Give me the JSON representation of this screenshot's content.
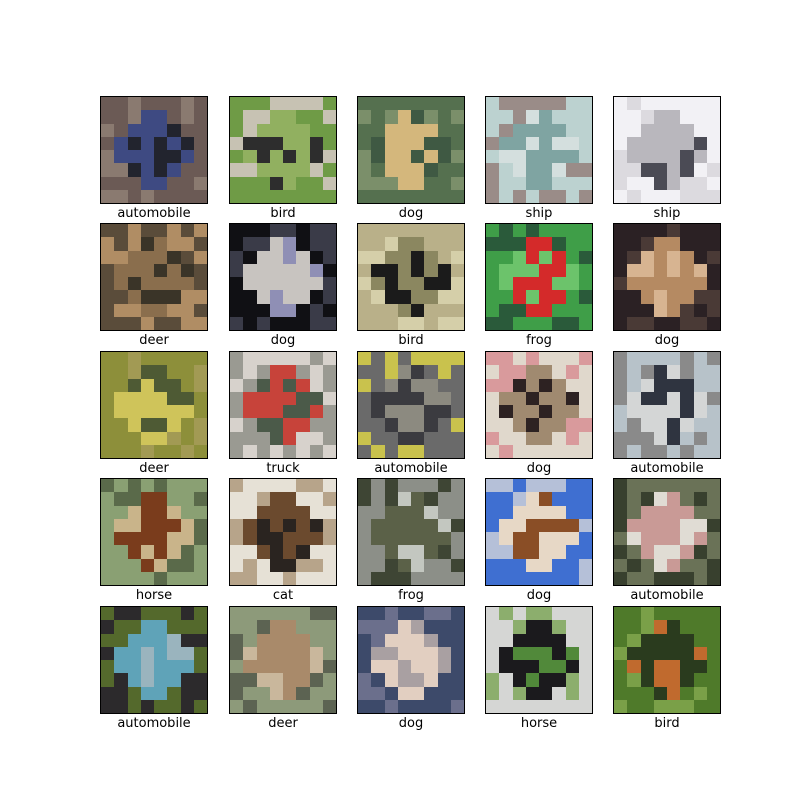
{
  "figure": {
    "images": [
      {
        "label": "automobile",
        "depicts": "blue car",
        "colors": [
          "#6b5a55",
          "#3e4a82",
          "#22242e",
          "#8a7a70"
        ]
      },
      {
        "label": "bird",
        "depicts": "small dark bird on post",
        "colors": [
          "#6f9b46",
          "#91b060",
          "#2d2d2d",
          "#c7c2b3"
        ]
      },
      {
        "label": "dog",
        "depicts": "tan chihuahua",
        "colors": [
          "#55704f",
          "#d4b77c",
          "#3f5943",
          "#7b8f6a"
        ]
      },
      {
        "label": "ship",
        "depicts": "ship hull on water",
        "colors": [
          "#bcd2d0",
          "#7fa4a2",
          "#d4dfde",
          "#9a8c88"
        ]
      },
      {
        "label": "ship",
        "depicts": "white ship",
        "colors": [
          "#f2f1f5",
          "#b9b7bd",
          "#4b4b55",
          "#dcdadf"
        ]
      },
      {
        "label": "deer",
        "depicts": "deer lying down",
        "colors": [
          "#5a4c3a",
          "#8a6e4d",
          "#3a3428",
          "#b08d64"
        ]
      },
      {
        "label": "dog",
        "depicts": "white fluffy dog",
        "colors": [
          "#101014",
          "#c8c4c0",
          "#8f8fb5",
          "#3a3b48"
        ]
      },
      {
        "label": "bird",
        "depicts": "black bird on branch",
        "colors": [
          "#b9b089",
          "#8b8760",
          "#1b1b1b",
          "#d5cfa9"
        ]
      },
      {
        "label": "frog",
        "depicts": "green frog with red eyes",
        "colors": [
          "#3f9e48",
          "#d42a2a",
          "#6cc36b",
          "#2a5a3a"
        ]
      },
      {
        "label": "dog",
        "depicts": "tan dog face",
        "colors": [
          "#2b2124",
          "#b58a62",
          "#d7b491",
          "#4a3a36"
        ]
      },
      {
        "label": "deer",
        "depicts": "deer in yellow grass",
        "colors": [
          "#8d8f3a",
          "#cfc45a",
          "#4e5a34",
          "#a29a54"
        ]
      },
      {
        "label": "truck",
        "depicts": "white fire truck",
        "colors": [
          "#d7d2cc",
          "#c7433a",
          "#4b5a49",
          "#9a9a92"
        ]
      },
      {
        "label": "automobile",
        "depicts": "grey sedan front",
        "colors": [
          "#6a6a6a",
          "#3b3b40",
          "#8c8a80",
          "#c9c24d"
        ]
      },
      {
        "label": "dog",
        "depicts": "pekingese face",
        "colors": [
          "#e0d8cc",
          "#a08a70",
          "#2d2222",
          "#d99a9c"
        ]
      },
      {
        "label": "automobile",
        "depicts": "dark hatchback",
        "colors": [
          "#b7c2c9",
          "#2f3440",
          "#d4d6d6",
          "#8a8a8a"
        ]
      },
      {
        "label": "horse",
        "depicts": "brown horse with rider",
        "colors": [
          "#8aa073",
          "#7a3c1c",
          "#c9b48a",
          "#5a6a4a"
        ]
      },
      {
        "label": "cat",
        "depicts": "brown and white cat",
        "colors": [
          "#e6e1d6",
          "#6b4a2e",
          "#2a2420",
          "#b7a48a"
        ]
      },
      {
        "label": "frog",
        "depicts": "camouflaged frog",
        "colors": [
          "#8c8f88",
          "#5b6148",
          "#c3c7c0",
          "#3e4534"
        ]
      },
      {
        "label": "dog",
        "depicts": "brown and white dog on blue",
        "colors": [
          "#3f6fd1",
          "#e7d8c6",
          "#8a4e26",
          "#b5c0d8"
        ]
      },
      {
        "label": "automobile",
        "depicts": "vintage red car",
        "colors": [
          "#6a7257",
          "#c99a96",
          "#e0dcd4",
          "#38402e"
        ]
      },
      {
        "label": "automobile",
        "depicts": "teal vintage car",
        "colors": [
          "#2c2a2c",
          "#5fa3b8",
          "#9ab4be",
          "#54692c"
        ]
      },
      {
        "label": "deer",
        "depicts": "deer head with antlers",
        "colors": [
          "#8d9a7a",
          "#a98a6a",
          "#c9b79c",
          "#5c6352"
        ]
      },
      {
        "label": "dog",
        "depicts": "fluffy white dog",
        "colors": [
          "#3d4a6a",
          "#e2cfc1",
          "#a9a0a2",
          "#6b6f8c"
        ]
      },
      {
        "label": "horse",
        "depicts": "black horse with rider",
        "colors": [
          "#d5d6d4",
          "#1b1a1d",
          "#51893a",
          "#8cae6d"
        ]
      },
      {
        "label": "bird",
        "depicts": "bird on green background",
        "colors": [
          "#4f7a2a",
          "#2a3b1e",
          "#c06a2e",
          "#7aa048"
        ]
      }
    ]
  }
}
